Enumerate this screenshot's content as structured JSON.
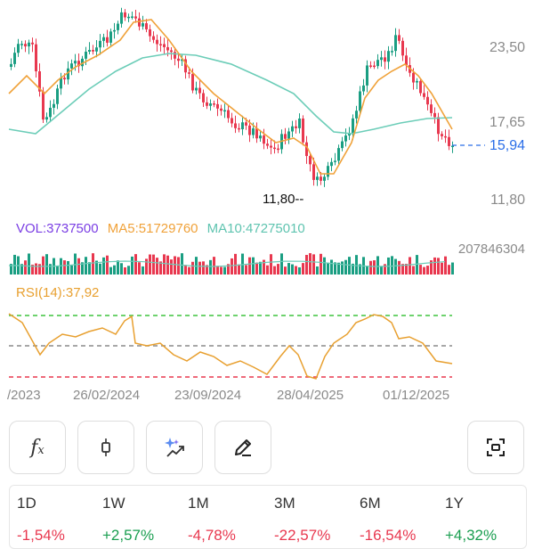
{
  "price_axis": {
    "high": "23,50",
    "mid": "17,65",
    "low": "11,80"
  },
  "last_price": "15,94",
  "min_marker": "11,80--",
  "volume_indicator": {
    "vol": "VOL:3737500",
    "ma5": "MA5:51729760",
    "ma10": "MA10:47275010",
    "max_label": "207846304"
  },
  "rsi_indicator": {
    "label": "RSI(14):37,92"
  },
  "dates": [
    "/2023",
    "26/02/2024",
    "23/09/2024",
    "28/04/2025",
    "01/12/2025"
  ],
  "toolbar": {
    "buttons": [
      {
        "name": "formula-button",
        "icon": "fx-icon"
      },
      {
        "name": "chart-type-button",
        "icon": "candlestick-icon"
      },
      {
        "name": "ai-analysis-button",
        "icon": "sparkle-trend-icon"
      },
      {
        "name": "draw-button",
        "icon": "pencil-icon"
      },
      {
        "name": "fullscreen-button",
        "icon": "expand-frame-icon"
      }
    ]
  },
  "periods": [
    {
      "label": "1D",
      "value": "-1,54%"
    },
    {
      "label": "1W",
      "value": "+2,57%"
    },
    {
      "label": "1M",
      "value": "-4,78%"
    },
    {
      "label": "3M",
      "value": "-22,57%"
    },
    {
      "label": "6M",
      "value": "-16,54%"
    },
    {
      "label": "1Y",
      "value": "+4,32%"
    }
  ],
  "colors": {
    "up": "#1a9e82",
    "down": "#e8384f",
    "ma5": "#f0a23a",
    "ma10": "#6ccdb8",
    "vol_label": "#7b3fe4",
    "rsi": "#e8a030",
    "last_price": "#2a6ee8",
    "rsi_overbought": "#3ec43e",
    "rsi_mid": "#8a8a8a",
    "rsi_oversold": "#e8384f"
  }
}
